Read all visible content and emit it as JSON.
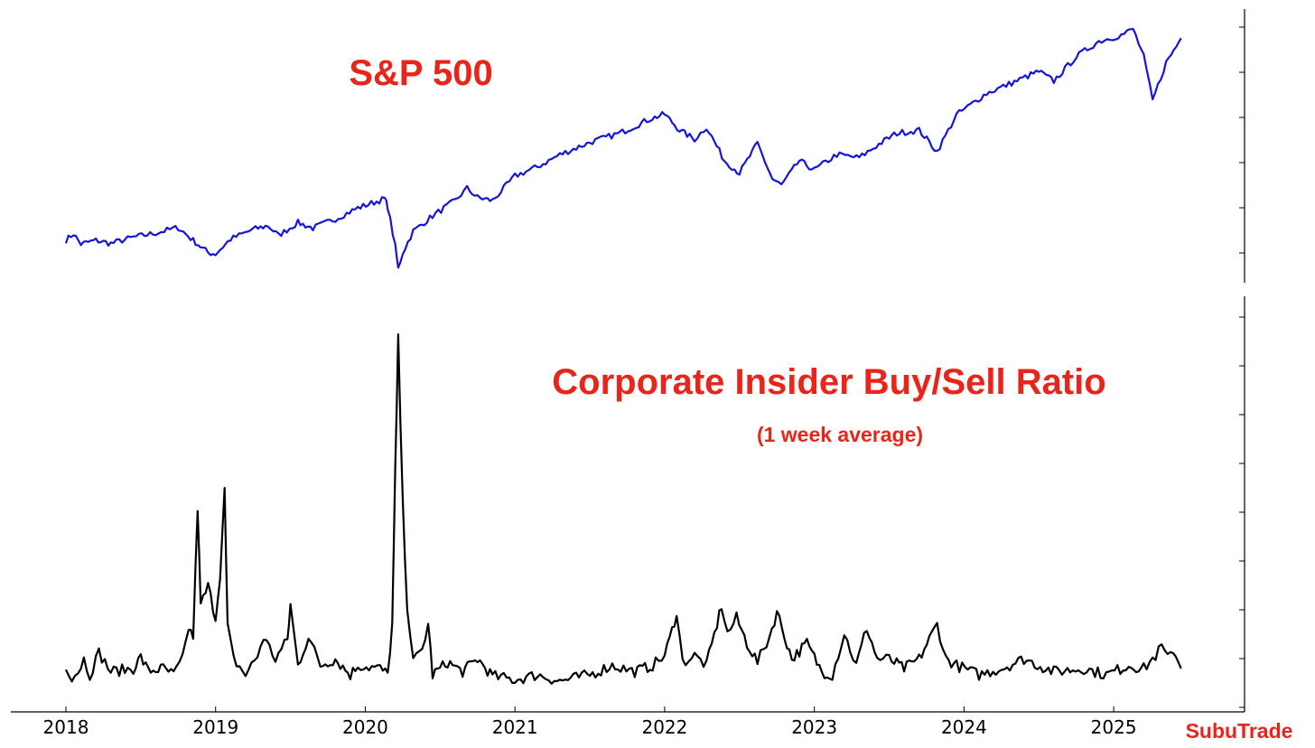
{
  "chart_data": [
    {
      "type": "line",
      "title": "S&P 500",
      "series": [
        {
          "name": "S&P 500",
          "color": "#1515d6",
          "points": [
            [
              2018.0,
              2700
            ],
            [
              2018.05,
              2810
            ],
            [
              2018.1,
              2640
            ],
            [
              2018.2,
              2700
            ],
            [
              2018.3,
              2650
            ],
            [
              2018.45,
              2750
            ],
            [
              2018.6,
              2820
            ],
            [
              2018.75,
              2910
            ],
            [
              2018.85,
              2700
            ],
            [
              2018.95,
              2500
            ],
            [
              2019.0,
              2480
            ],
            [
              2019.1,
              2720
            ],
            [
              2019.25,
              2880
            ],
            [
              2019.35,
              2940
            ],
            [
              2019.42,
              2780
            ],
            [
              2019.55,
              2990
            ],
            [
              2019.65,
              2900
            ],
            [
              2019.8,
              3050
            ],
            [
              2019.95,
              3230
            ],
            [
              2020.13,
              3380
            ],
            [
              2020.15,
              3250
            ],
            [
              2020.2,
              2600
            ],
            [
              2020.22,
              2237
            ],
            [
              2020.25,
              2500
            ],
            [
              2020.32,
              2850
            ],
            [
              2020.45,
              3100
            ],
            [
              2020.6,
              3350
            ],
            [
              2020.68,
              3550
            ],
            [
              2020.75,
              3400
            ],
            [
              2020.85,
              3350
            ],
            [
              2021.0,
              3750
            ],
            [
              2021.15,
              3900
            ],
            [
              2021.3,
              4100
            ],
            [
              2021.5,
              4300
            ],
            [
              2021.7,
              4450
            ],
            [
              2021.9,
              4680
            ],
            [
              2022.0,
              4760
            ],
            [
              2022.1,
              4500
            ],
            [
              2022.2,
              4350
            ],
            [
              2022.28,
              4550
            ],
            [
              2022.4,
              4000
            ],
            [
              2022.5,
              3800
            ],
            [
              2022.62,
              4280
            ],
            [
              2022.72,
              3700
            ],
            [
              2022.78,
              3600
            ],
            [
              2022.9,
              4000
            ],
            [
              2023.0,
              3850
            ],
            [
              2023.15,
              4100
            ],
            [
              2023.3,
              4050
            ],
            [
              2023.45,
              4300
            ],
            [
              2023.55,
              4450
            ],
            [
              2023.7,
              4500
            ],
            [
              2023.82,
              4150
            ],
            [
              2023.95,
              4750
            ],
            [
              2024.15,
              5100
            ],
            [
              2024.3,
              5250
            ],
            [
              2024.5,
              5460
            ],
            [
              2024.6,
              5300
            ],
            [
              2024.75,
              5700
            ],
            [
              2024.9,
              5950
            ],
            [
              2025.05,
              6050
            ],
            [
              2025.13,
              6150
            ],
            [
              2025.2,
              5700
            ],
            [
              2025.26,
              4982
            ],
            [
              2025.35,
              5600
            ],
            [
              2025.45,
              6000
            ]
          ]
        }
      ],
      "xlim": [
        2018.0,
        2025.5
      ],
      "ylim": [
        2200,
        6300
      ]
    },
    {
      "type": "line",
      "title": "Corporate Insider Buy/Sell Ratio",
      "subtitle": "(1 week average)",
      "series": [
        {
          "name": "Corporate Insider Buy/Sell Ratio",
          "color": "#000000",
          "points": [
            [
              2018.0,
              0.45
            ],
            [
              2018.04,
              0.27
            ],
            [
              2018.08,
              0.35
            ],
            [
              2018.12,
              0.55
            ],
            [
              2018.16,
              0.3
            ],
            [
              2018.22,
              0.65
            ],
            [
              2018.3,
              0.35
            ],
            [
              2018.45,
              0.4
            ],
            [
              2018.5,
              0.58
            ],
            [
              2018.55,
              0.36
            ],
            [
              2018.65,
              0.4
            ],
            [
              2018.72,
              0.3
            ],
            [
              2018.78,
              0.55
            ],
            [
              2018.82,
              1.05
            ],
            [
              2018.85,
              0.9
            ],
            [
              2018.88,
              2.95
            ],
            [
              2018.9,
              1.4
            ],
            [
              2018.95,
              1.7
            ],
            [
              2019.0,
              1.2
            ],
            [
              2019.03,
              1.9
            ],
            [
              2019.06,
              3.2
            ],
            [
              2019.08,
              1.05
            ],
            [
              2019.12,
              0.55
            ],
            [
              2019.2,
              0.3
            ],
            [
              2019.28,
              0.6
            ],
            [
              2019.32,
              0.9
            ],
            [
              2019.4,
              0.55
            ],
            [
              2019.48,
              0.85
            ],
            [
              2019.5,
              1.4
            ],
            [
              2019.55,
              0.45
            ],
            [
              2019.62,
              0.9
            ],
            [
              2019.7,
              0.45
            ],
            [
              2019.8,
              0.55
            ],
            [
              2019.9,
              0.3
            ],
            [
              2019.95,
              0.45
            ],
            [
              2020.1,
              0.4
            ],
            [
              2020.15,
              0.3
            ],
            [
              2020.18,
              1.1
            ],
            [
              2020.2,
              3.5
            ],
            [
              2020.22,
              5.6
            ],
            [
              2020.25,
              3.0
            ],
            [
              2020.28,
              1.4
            ],
            [
              2020.32,
              0.5
            ],
            [
              2020.38,
              0.7
            ],
            [
              2020.42,
              1.1
            ],
            [
              2020.45,
              0.3
            ],
            [
              2020.55,
              0.5
            ],
            [
              2020.65,
              0.35
            ],
            [
              2020.75,
              0.55
            ],
            [
              2020.85,
              0.28
            ],
            [
              2021.0,
              0.22
            ],
            [
              2021.15,
              0.3
            ],
            [
              2021.3,
              0.2
            ],
            [
              2021.5,
              0.3
            ],
            [
              2021.65,
              0.45
            ],
            [
              2021.8,
              0.35
            ],
            [
              2021.92,
              0.45
            ],
            [
              2022.0,
              0.6
            ],
            [
              2022.05,
              1.0
            ],
            [
              2022.08,
              1.3
            ],
            [
              2022.12,
              0.5
            ],
            [
              2022.2,
              0.6
            ],
            [
              2022.28,
              0.45
            ],
            [
              2022.35,
              1.1
            ],
            [
              2022.38,
              1.4
            ],
            [
              2022.42,
              0.95
            ],
            [
              2022.48,
              1.2
            ],
            [
              2022.55,
              0.8
            ],
            [
              2022.62,
              0.5
            ],
            [
              2022.7,
              0.9
            ],
            [
              2022.75,
              1.3
            ],
            [
              2022.85,
              0.55
            ],
            [
              2022.95,
              0.8
            ],
            [
              2023.05,
              0.35
            ],
            [
              2023.12,
              0.3
            ],
            [
              2023.2,
              0.95
            ],
            [
              2023.28,
              0.45
            ],
            [
              2023.35,
              1.05
            ],
            [
              2023.42,
              0.55
            ],
            [
              2023.5,
              0.55
            ],
            [
              2023.6,
              0.4
            ],
            [
              2023.7,
              0.55
            ],
            [
              2023.82,
              1.1
            ],
            [
              2023.88,
              0.55
            ],
            [
              2023.95,
              0.45
            ],
            [
              2024.1,
              0.3
            ],
            [
              2024.25,
              0.4
            ],
            [
              2024.4,
              0.55
            ],
            [
              2024.6,
              0.35
            ],
            [
              2024.8,
              0.4
            ],
            [
              2024.95,
              0.3
            ],
            [
              2025.1,
              0.45
            ],
            [
              2025.2,
              0.4
            ],
            [
              2025.28,
              0.6
            ],
            [
              2025.32,
              0.75
            ],
            [
              2025.36,
              0.55
            ],
            [
              2025.4,
              0.7
            ],
            [
              2025.45,
              0.4
            ]
          ]
        }
      ],
      "xlim": [
        2018.0,
        2025.5
      ],
      "ylim": [
        0,
        6
      ]
    }
  ],
  "x_axis": {
    "ticks": [
      2018,
      2019,
      2020,
      2021,
      2022,
      2023,
      2024,
      2025
    ],
    "tick_labels": [
      "2018",
      "2019",
      "2020",
      "2021",
      "2022",
      "2023",
      "2024",
      "2025"
    ]
  },
  "top_right_ticks": 6,
  "bottom_right_ticks": 9,
  "watermark": "SubuTrade",
  "colors": {
    "accent": "#e8251b",
    "sp500_line": "#1515d6",
    "ratio_line": "#000000"
  }
}
